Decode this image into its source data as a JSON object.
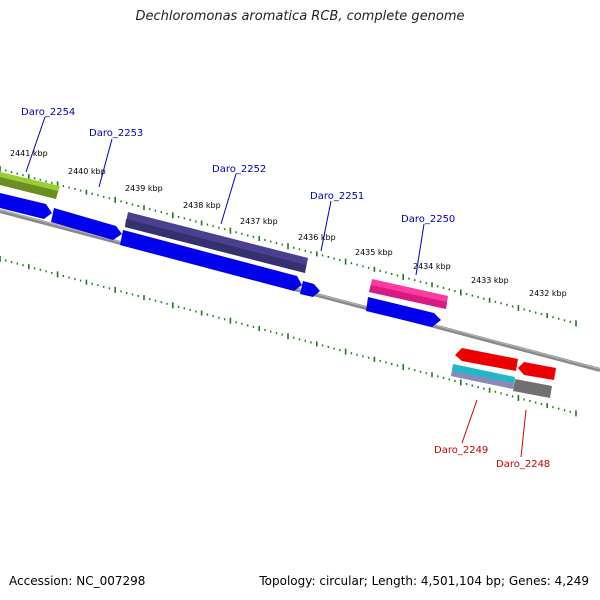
{
  "title": "Dechloromonas aromatica RCB, complete genome",
  "footer": {
    "accession": "Accession: NC_007298",
    "summary": "Topology: circular; Length: 4,501,104 bp; Genes: 4,249"
  },
  "kbp_ticks": [
    "2441 kbp",
    "2440 kbp",
    "2439 kbp",
    "2438 kbp",
    "2437 kbp",
    "2436 kbp",
    "2435 kbp",
    "2434 kbp",
    "2433 kbp",
    "2432 kbp"
  ],
  "gene_labels": {
    "forward": [
      "Daro_2254",
      "Daro_2253",
      "Daro_2252",
      "Daro_2251",
      "Daro_2250"
    ],
    "reverse": [
      "Daro_2249",
      "Daro_2248"
    ]
  },
  "colors": {
    "forward_label": "#0000bb",
    "reverse_label": "#cc0000",
    "tick": "#1a7a1a",
    "backbone": "#808080"
  }
}
